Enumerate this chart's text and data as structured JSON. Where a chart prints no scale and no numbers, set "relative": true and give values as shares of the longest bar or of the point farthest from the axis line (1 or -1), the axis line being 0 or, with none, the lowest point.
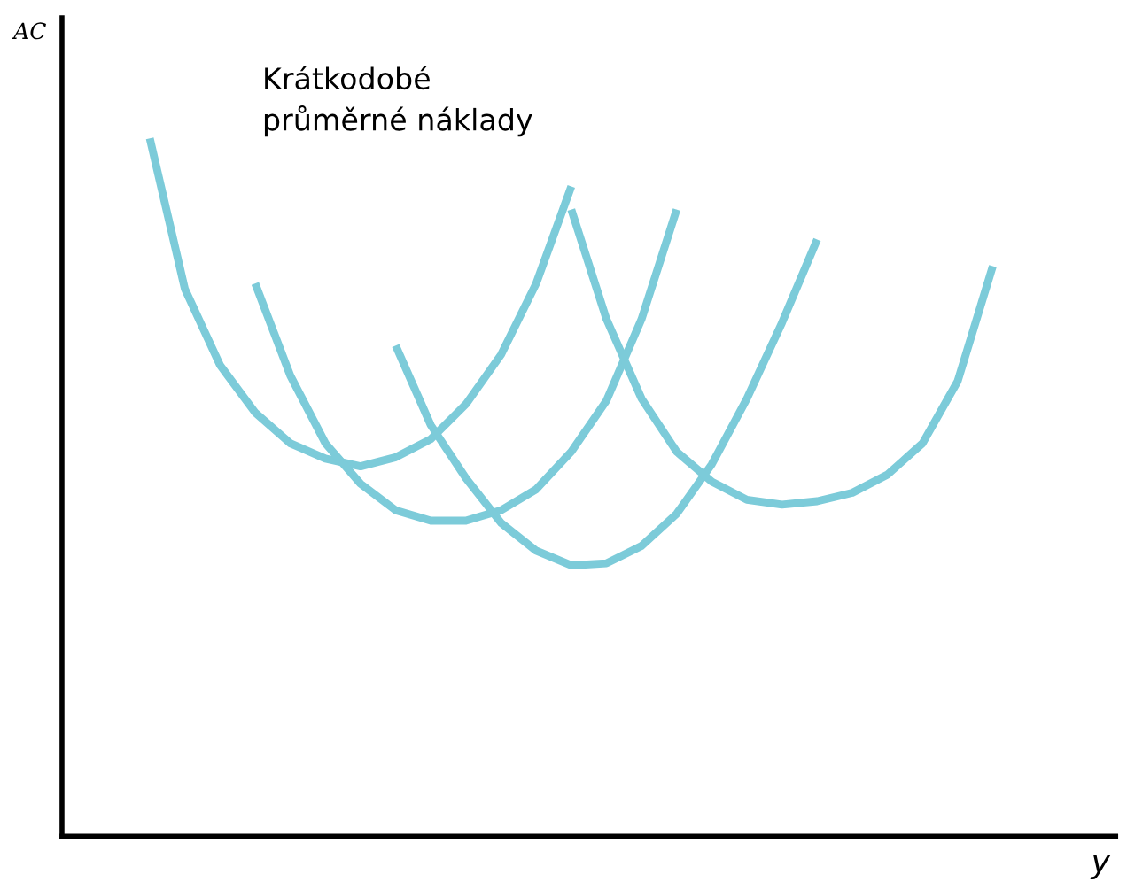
{
  "chart_data": {
    "type": "line",
    "relative": true,
    "xlabel": "y",
    "ylabel": "AC",
    "annotations": [
      "Krátkodobé\nprůměrné náklady"
    ],
    "marker": "none",
    "line_style": "solid",
    "categories": [
      null,
      null,
      null,
      null,
      null,
      null,
      null,
      null,
      null,
      null,
      null,
      null,
      null,
      null,
      null,
      null,
      null,
      null,
      null,
      null,
      null,
      null,
      null,
      null,
      null,
      null,
      null,
      null
    ],
    "series": [
      {
        "color": "#7ccbd9",
        "values": [
          null,
          null,
          1.0,
          0.784,
          0.675,
          0.607,
          0.563,
          0.541,
          0.53,
          0.543,
          0.569,
          0.619,
          0.69,
          0.792,
          0.931,
          null,
          null,
          null,
          null,
          null,
          null,
          null,
          null,
          null,
          null,
          null,
          null,
          null
        ]
      },
      {
        "color": "#7ccbd9",
        "values": [
          null,
          null,
          null,
          null,
          null,
          0.792,
          0.66,
          0.563,
          0.505,
          0.467,
          0.452,
          0.452,
          0.467,
          0.497,
          0.551,
          0.624,
          0.741,
          0.898,
          null,
          null,
          null,
          null,
          null,
          null,
          null,
          null,
          null,
          null
        ]
      },
      {
        "color": "#7ccbd9",
        "values": [
          null,
          null,
          null,
          null,
          null,
          null,
          null,
          null,
          null,
          0.703,
          0.589,
          0.513,
          0.449,
          0.409,
          0.388,
          0.391,
          0.416,
          0.462,
          0.533,
          0.627,
          0.736,
          0.855,
          null,
          null,
          null,
          null,
          null,
          null
        ]
      },
      {
        "color": "#7ccbd9",
        "values": [
          null,
          null,
          null,
          null,
          null,
          null,
          null,
          null,
          null,
          null,
          null,
          null,
          null,
          null,
          0.898,
          0.741,
          0.627,
          0.551,
          0.508,
          0.482,
          0.475,
          0.48,
          0.492,
          0.518,
          0.563,
          0.652,
          0.817,
          null
        ]
      }
    ]
  }
}
